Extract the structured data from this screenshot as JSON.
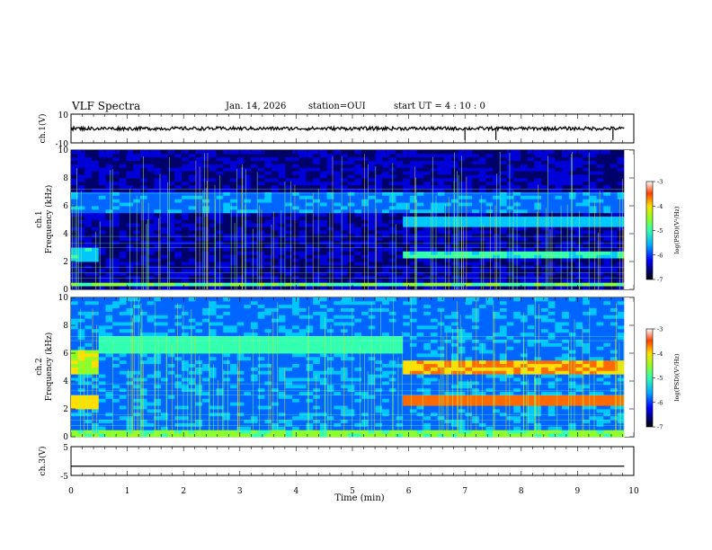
{
  "header": {
    "title": "VLF Spectra",
    "date": "Jan. 14, 2026",
    "station": "station=OUI",
    "start": "start UT =  4 : 10 : 0"
  },
  "colors": {
    "ramp": [
      "#00006a",
      "#0000d8",
      "#0066ff",
      "#00c8ff",
      "#33ffb0",
      "#8cff2a",
      "#ffe000",
      "#ff6a00",
      "#d40000",
      "#8a0000"
    ]
  },
  "chart_data": [
    {
      "type": "line",
      "panel": "ch1-waveform",
      "ylabel": "ch.1(V)",
      "ylim": [
        -10,
        10
      ],
      "yticks": [
        "10",
        "-10"
      ],
      "xlim": [
        0,
        10
      ],
      "series": [
        {
          "name": "ch.1",
          "baseline": 0,
          "noise_amplitude": 1.2,
          "spikes_min": [
            7.0,
            7.55,
            9.63
          ]
        }
      ]
    },
    {
      "type": "heatmap",
      "panel": "ch1-spectrum",
      "ylabel": "Frequency (kHz)",
      "ylabel2": "ch.1",
      "ylim": [
        0,
        10
      ],
      "yticks": [
        "0",
        "2",
        "4",
        "6",
        "8",
        "10"
      ],
      "xlim": [
        0,
        9.83
      ],
      "colorbar": {
        "label": "log(PSD)(V²/Hz)",
        "ticks": [
          "-3",
          "-4",
          "-5",
          "-6",
          "-7"
        ],
        "range": [
          -7,
          -3
        ]
      },
      "background_logpsd": -6.6,
      "bands": [
        {
          "f_lo": 0.2,
          "f_hi": 0.5,
          "t_start": 0,
          "t_end": 9.83,
          "logpsd": -5.0
        },
        {
          "f_lo": 2.0,
          "f_hi": 2.9,
          "t_start": 0,
          "t_end": 0.45,
          "logpsd": -5.5
        },
        {
          "f_lo": 2.3,
          "f_hi": 2.8,
          "t_start": 5.85,
          "t_end": 9.83,
          "logpsd": -5.3
        },
        {
          "f_lo": 4.5,
          "f_hi": 5.3,
          "t_start": 5.85,
          "t_end": 9.83,
          "logpsd": -5.6
        },
        {
          "f_lo": 5.6,
          "f_hi": 7.0,
          "t_start": 0,
          "t_end": 9.83,
          "logpsd": -5.9
        }
      ]
    },
    {
      "type": "heatmap",
      "panel": "ch2-spectrum",
      "ylabel": "Frequency (kHz)",
      "ylabel2": "ch.2",
      "ylim": [
        0,
        10
      ],
      "yticks": [
        "0",
        "2",
        "4",
        "6",
        "8",
        "10"
      ],
      "xlim": [
        0,
        9.83
      ],
      "colorbar": {
        "label": "log(PSD)(V²/Hz)",
        "ticks": [
          "-3",
          "-4",
          "-5",
          "-6",
          "-7"
        ],
        "range": [
          -7,
          -3
        ]
      },
      "background_logpsd": -5.9,
      "bands": [
        {
          "f_lo": 0.1,
          "f_hi": 0.6,
          "t_start": 0,
          "t_end": 9.83,
          "logpsd": -4.9
        },
        {
          "f_lo": 2.1,
          "f_hi": 3.0,
          "t_start": 0,
          "t_end": 0.45,
          "logpsd": -4.4
        },
        {
          "f_lo": 2.2,
          "f_hi": 3.1,
          "t_start": 5.85,
          "t_end": 9.83,
          "logpsd": -4.0
        },
        {
          "f_lo": 4.5,
          "f_hi": 5.5,
          "t_start": 5.85,
          "t_end": 9.83,
          "logpsd": -4.2
        },
        {
          "f_lo": 4.6,
          "f_hi": 6.2,
          "t_start": 0,
          "t_end": 0.45,
          "logpsd": -4.6
        },
        {
          "f_lo": 6.0,
          "f_hi": 7.3,
          "t_start": 0.45,
          "t_end": 5.85,
          "logpsd": -5.2
        }
      ]
    },
    {
      "type": "line",
      "panel": "ch3-waveform",
      "ylabel": "ch.3(V)",
      "ylim": [
        -5,
        5
      ],
      "yticks": [
        "5",
        "-5"
      ],
      "xlim": [
        0,
        10
      ],
      "xlabel": "Time (min)",
      "xticks": [
        "0",
        "1",
        "2",
        "3",
        "4",
        "5",
        "6",
        "7",
        "8",
        "9",
        "10"
      ],
      "series": [
        {
          "name": "ch.3",
          "value": -1.8
        }
      ]
    }
  ]
}
